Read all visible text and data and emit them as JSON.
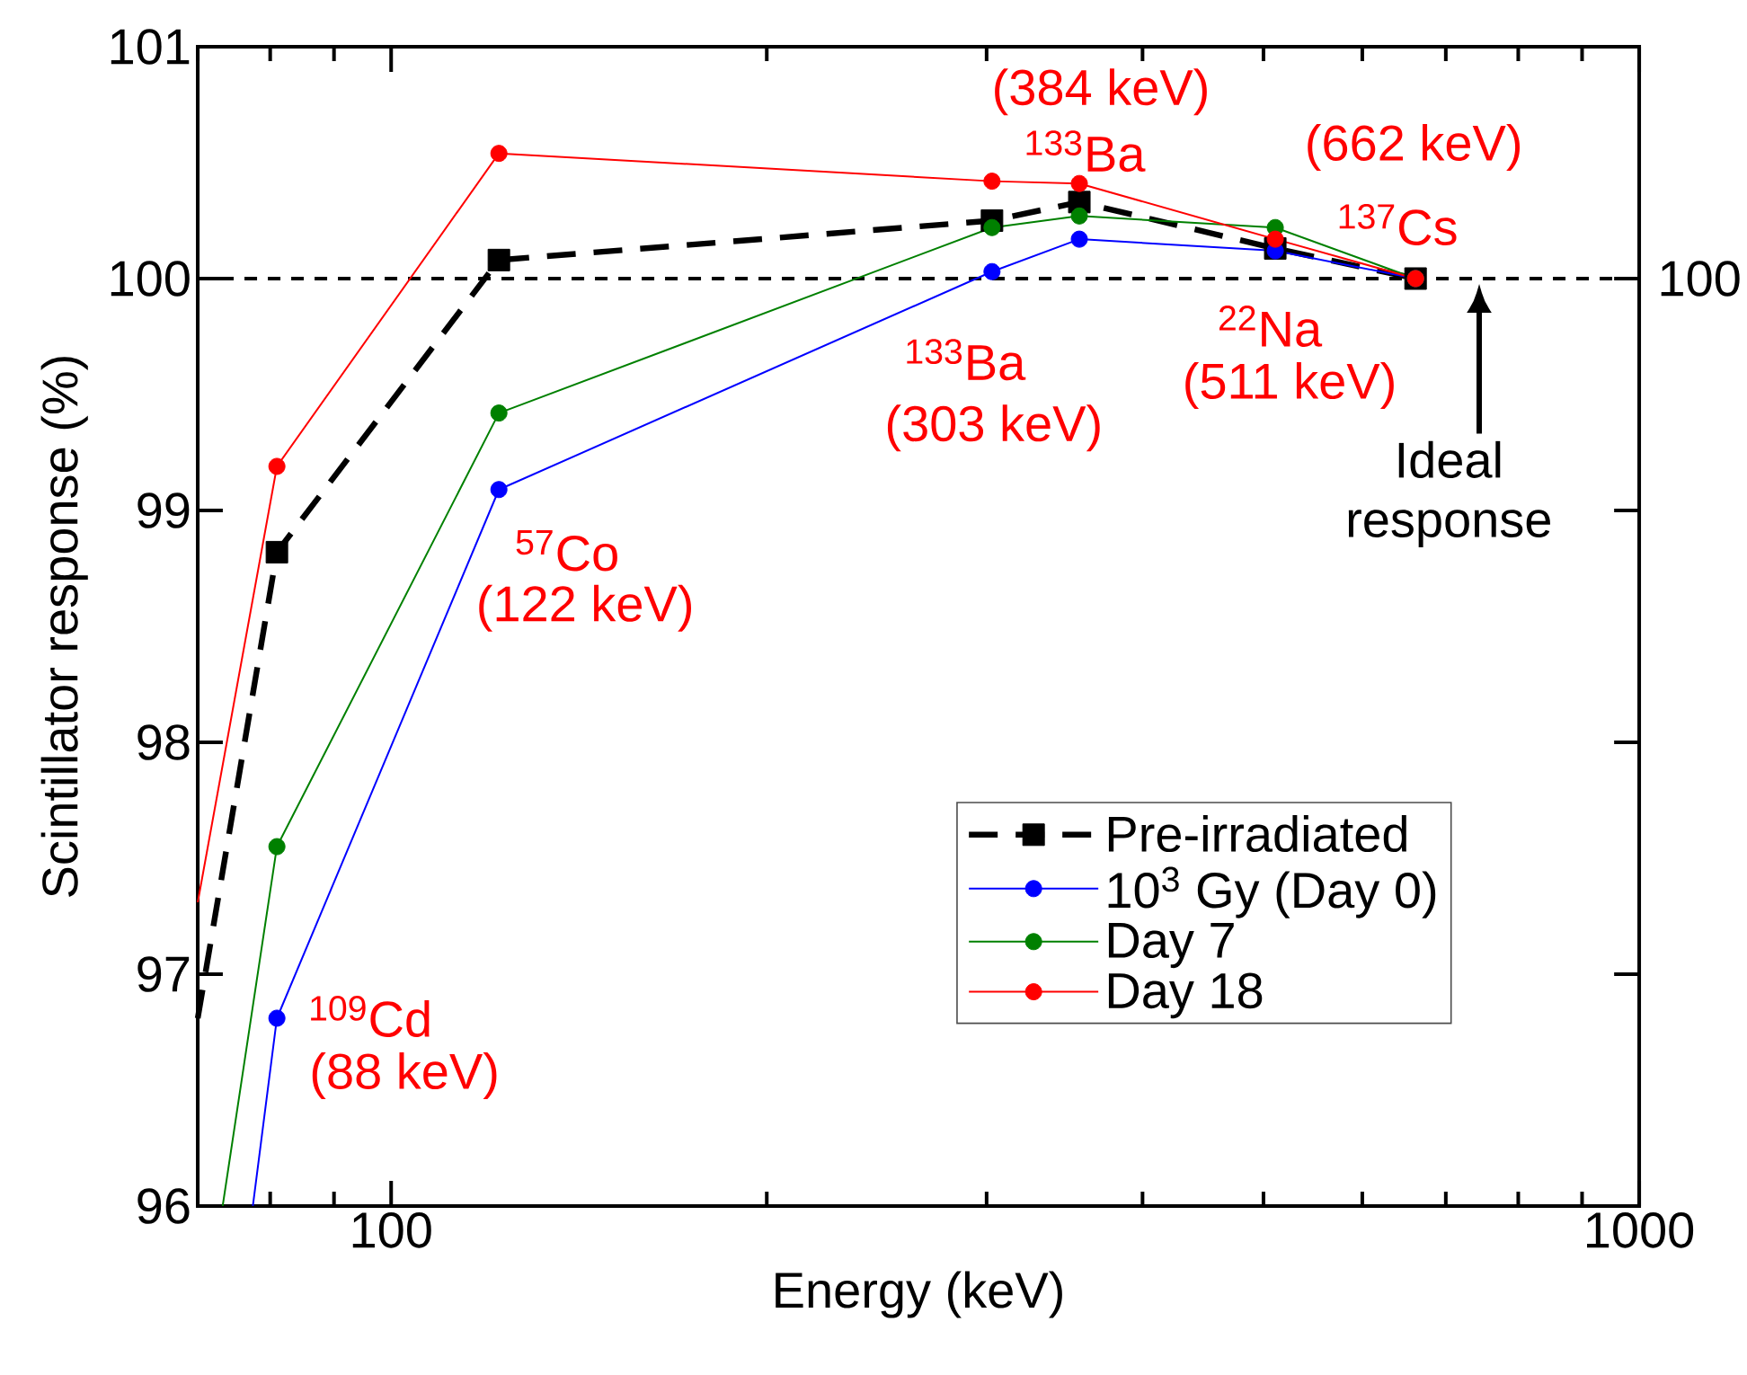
{
  "chart_data": {
    "type": "line",
    "xlabel": "Energy (keV)",
    "ylabel": "Scintillator response (%)",
    "log": "x",
    "xlim": [
      70,
      1000
    ],
    "ylim": [
      96,
      101
    ],
    "xticks": [
      100,
      1000
    ],
    "yticks": [
      96,
      97,
      98,
      99,
      100,
      101
    ],
    "legend": "bottom right",
    "grid": false,
    "series": [
      {
        "name": "Pre-irradiated",
        "color": "#000000",
        "marker": "square",
        "line_style": "dashed",
        "x": [
          70,
          81,
          122,
          303,
          356,
          511,
          662
        ],
        "values": [
          96.81,
          98.82,
          100.08,
          100.25,
          100.33,
          100.13,
          100
        ]
      },
      {
        "name": "10$^{3}$ Gy (Day 0)",
        "color": "#0000ff",
        "marker": "circle",
        "line_style": "solid",
        "x": [
          77.5,
          81,
          122,
          303,
          356,
          511,
          662
        ],
        "values": [
          96,
          96.81,
          99.09,
          100.03,
          100.17,
          100.12,
          100
        ]
      },
      {
        "name": "Day 7",
        "color": "#008000",
        "marker": "circle",
        "line_style": "solid",
        "x": [
          73.3,
          81,
          122,
          303,
          356,
          511,
          662
        ],
        "values": [
          96,
          97.55,
          99.42,
          100.22,
          100.27,
          100.22,
          100
        ]
      },
      {
        "name": "Day 18",
        "color": "#ff0000",
        "marker": "circle",
        "line_style": "solid",
        "x": [
          70,
          81,
          122,
          303,
          356,
          511,
          662
        ],
        "values": [
          97.31,
          99.19,
          100.54,
          100.42,
          100.41,
          100.17,
          100
        ]
      }
    ],
    "ref_lines": [
      {
        "axis": "y",
        "value": 100,
        "label": "100",
        "color": "#000000",
        "line_style": "dotted"
      }
    ],
    "annotations": [
      {
        "text": "$^{109}$Cd",
        "x": 81,
        "y": 96.81
      },
      {
        "text": "(88 keV)",
        "x": 81,
        "y": 96.81
      },
      {
        "text": "$^{57}$Co",
        "x": 122,
        "y": 99.09
      },
      {
        "text": "(122 keV)",
        "x": 122,
        "y": 99.09
      },
      {
        "text": "$^{133}$Ba",
        "x": 303,
        "y": 100.03
      },
      {
        "text": "(303 keV)",
        "x": 303,
        "y": 100.03
      },
      {
        "text": "(384 keV)",
        "x": 356,
        "y": 100.41
      },
      {
        "text": "$^{133}$Ba",
        "x": 356,
        "y": 100.41
      },
      {
        "text": "(662 keV)",
        "x": 662,
        "y": 100
      },
      {
        "text": "$^{137}$Cs",
        "x": 662,
        "y": 100
      },
      {
        "text": "$^{22}$Na",
        "x": 511,
        "y": 100.12
      },
      {
        "text": "(511 keV)",
        "x": 511,
        "y": 100.12
      },
      "Ideal response"
    ]
  }
}
